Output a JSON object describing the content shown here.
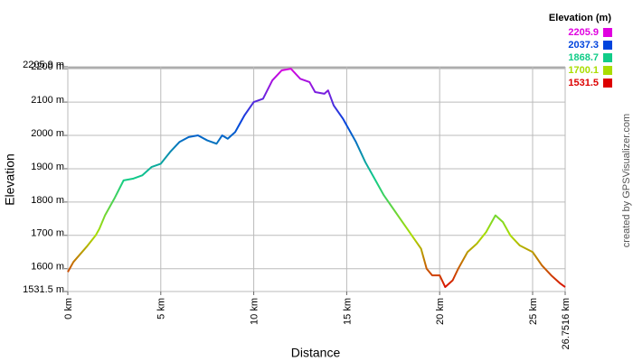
{
  "chart_data": {
    "type": "line",
    "x_label": "Distance",
    "y_label": "Elevation",
    "credit": "created by GPSVisualizer.com",
    "x": [
      0,
      0.3,
      1,
      1.5,
      1.7,
      2,
      2.5,
      3,
      3.5,
      4,
      4.5,
      5,
      5.5,
      6,
      6.5,
      7,
      7.5,
      8,
      8.3,
      8.6,
      9,
      9.5,
      10,
      10.5,
      11,
      11.5,
      12,
      12.5,
      13,
      13.3,
      13.8,
      14,
      14.3,
      14.8,
      15,
      15.5,
      16,
      16.5,
      17,
      17.5,
      18,
      18.5,
      19,
      19.3,
      19.6,
      20,
      20.3,
      20.7,
      21,
      21.5,
      22,
      22.5,
      23,
      23.4,
      23.8,
      24.3,
      25,
      25.5,
      26,
      26.5,
      26.7516
    ],
    "values": [
      1590,
      1620,
      1665,
      1700,
      1720,
      1760,
      1810,
      1865,
      1870,
      1880,
      1905,
      1915,
      1950,
      1980,
      1995,
      2000,
      1985,
      1975,
      2000,
      1990,
      2010,
      2060,
      2100,
      2110,
      2165,
      2195,
      2200,
      2170,
      2160,
      2130,
      2125,
      2135,
      2090,
      2050,
      2030,
      1980,
      1920,
      1870,
      1820,
      1780,
      1740,
      1700,
      1660,
      1600,
      1580,
      1580,
      1545,
      1565,
      1600,
      1650,
      1675,
      1710,
      1760,
      1740,
      1700,
      1670,
      1650,
      1610,
      1580,
      1555,
      1545
    ],
    "xlim": [
      0,
      26.7516
    ],
    "xticks": [
      {
        "value": 0,
        "label": "0 km"
      },
      {
        "value": 5,
        "label": "5 km"
      },
      {
        "value": 10,
        "label": "10 km"
      },
      {
        "value": 15,
        "label": "15 km"
      },
      {
        "value": 20,
        "label": "20 km"
      },
      {
        "value": 25,
        "label": "25 km"
      },
      {
        "value": 26.7516,
        "label": "26.7516 km"
      }
    ],
    "ylim": [
      1531.5,
      2205.9
    ],
    "yticks": [
      {
        "value": 1531.5,
        "label": "1531.5 m"
      },
      {
        "value": 1600,
        "label": "1600 m"
      },
      {
        "value": 1700,
        "label": "1700 m"
      },
      {
        "value": 1800,
        "label": "1800 m"
      },
      {
        "value": 1900,
        "label": "1900 m"
      },
      {
        "value": 2000,
        "label": "2000 m"
      },
      {
        "value": 2100,
        "label": "2100 m"
      },
      {
        "value": 2200,
        "label": "2200 m"
      },
      {
        "value": 2205.9,
        "label": "2205.9 m"
      }
    ],
    "grid": true,
    "legend": {
      "title": "Elevation (m)",
      "entries": [
        {
          "value": 2205.9,
          "color": "#e000e0"
        },
        {
          "value": 2037.3,
          "color": "#0044dd"
        },
        {
          "value": 1868.7,
          "color": "#11cc88"
        },
        {
          "value": 1700.1,
          "color": "#aadd00"
        },
        {
          "value": 1531.5,
          "color": "#dd0000"
        }
      ]
    }
  }
}
